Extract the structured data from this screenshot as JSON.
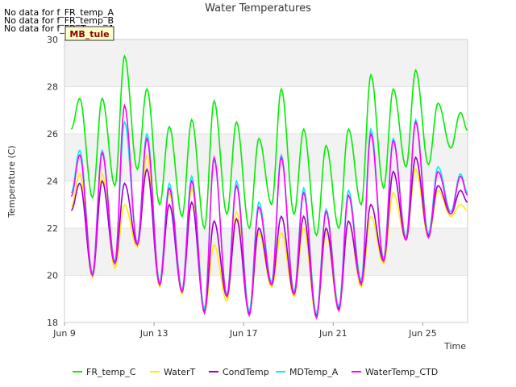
{
  "no_data_messages": [
    "No data for f_FR_temp_A",
    "No data for f_FR_temp_B",
    "No data for f_FD_Temp_1"
  ],
  "site_label": "MB_tule",
  "chart_data": {
    "type": "line",
    "title": "Water Temperatures",
    "xlabel": "Time",
    "ylabel": "Temperature (C)",
    "x_ticks": [
      "Jun 9",
      "Jun 13",
      "Jun 17",
      "Jun 21",
      "Jun 25"
    ],
    "x_tick_days": [
      9,
      13,
      17,
      21,
      25
    ],
    "xlim": [
      9,
      27
    ],
    "ylim": [
      18,
      30
    ],
    "y_ticks": [
      18,
      20,
      22,
      24,
      26,
      28,
      30
    ],
    "grid": "horizontal bands",
    "legend_position": "bottom",
    "x_day_start": 9.3,
    "series": [
      {
        "name": "FR_temp_C",
        "color": "#00ee00",
        "daily_min": [
          23.7,
          23.3,
          23.8,
          24.5,
          23.0,
          22.5,
          22.0,
          22.6,
          22.0,
          23.0,
          22.6,
          21.7,
          22.0,
          23.0,
          23.7,
          24.6,
          24.7,
          25.4
        ],
        "daily_max": [
          27.5,
          27.5,
          29.3,
          27.9,
          26.3,
          26.6,
          27.4,
          26.5,
          25.8,
          27.9,
          26.2,
          25.5,
          26.2,
          28.5,
          27.9,
          28.7,
          27.3,
          26.9
        ]
      },
      {
        "name": "WaterT",
        "color": "#ffee00",
        "daily_min": [
          20.3,
          19.9,
          20.3,
          21.2,
          19.5,
          19.2,
          18.4,
          18.9,
          18.3,
          19.5,
          19.1,
          18.2,
          18.5,
          19.5,
          20.5,
          21.5,
          21.6,
          22.5
        ],
        "daily_max": [
          24.3,
          24.3,
          23.0,
          25.1,
          23.5,
          23.7,
          21.3,
          22.7,
          21.8,
          21.8,
          22.0,
          21.8,
          22.3,
          22.5,
          23.5,
          24.5,
          23.6,
          23.0
        ]
      },
      {
        "name": "CondTemp",
        "color": "#9900cc",
        "daily_min": [
          20.4,
          20.0,
          20.5,
          21.3,
          19.6,
          19.3,
          18.5,
          19.1,
          18.4,
          19.6,
          19.2,
          18.3,
          18.6,
          19.7,
          20.6,
          21.5,
          21.7,
          22.6
        ],
        "daily_max": [
          23.9,
          24.0,
          23.9,
          24.5,
          23.0,
          23.1,
          22.3,
          22.4,
          22.0,
          22.5,
          22.5,
          22.0,
          22.3,
          23.0,
          24.4,
          25.0,
          23.8,
          23.6
        ]
      },
      {
        "name": "MDTemp_A",
        "color": "#00eeee",
        "daily_min": [
          20.5,
          20.1,
          20.6,
          21.4,
          19.7,
          19.4,
          18.6,
          19.2,
          18.5,
          19.7,
          19.3,
          18.4,
          18.7,
          19.8,
          20.7,
          21.6,
          21.8,
          22.7
        ],
        "daily_max": [
          25.3,
          25.3,
          26.5,
          26.0,
          23.9,
          24.2,
          24.9,
          24.0,
          23.1,
          25.1,
          23.7,
          22.8,
          23.6,
          26.2,
          25.8,
          26.6,
          24.6,
          24.3
        ]
      },
      {
        "name": "WaterTemp_CTD",
        "color": "#ff00ff",
        "daily_min": [
          20.4,
          20.0,
          20.5,
          21.3,
          19.6,
          19.3,
          18.4,
          19.1,
          18.3,
          19.6,
          19.2,
          18.2,
          18.5,
          19.6,
          20.6,
          21.5,
          21.6,
          22.6
        ],
        "daily_max": [
          25.1,
          25.2,
          27.2,
          25.8,
          23.7,
          24.0,
          25.0,
          23.8,
          22.9,
          25.0,
          23.5,
          22.7,
          23.4,
          26.0,
          25.7,
          26.5,
          24.4,
          24.2
        ]
      }
    ]
  }
}
